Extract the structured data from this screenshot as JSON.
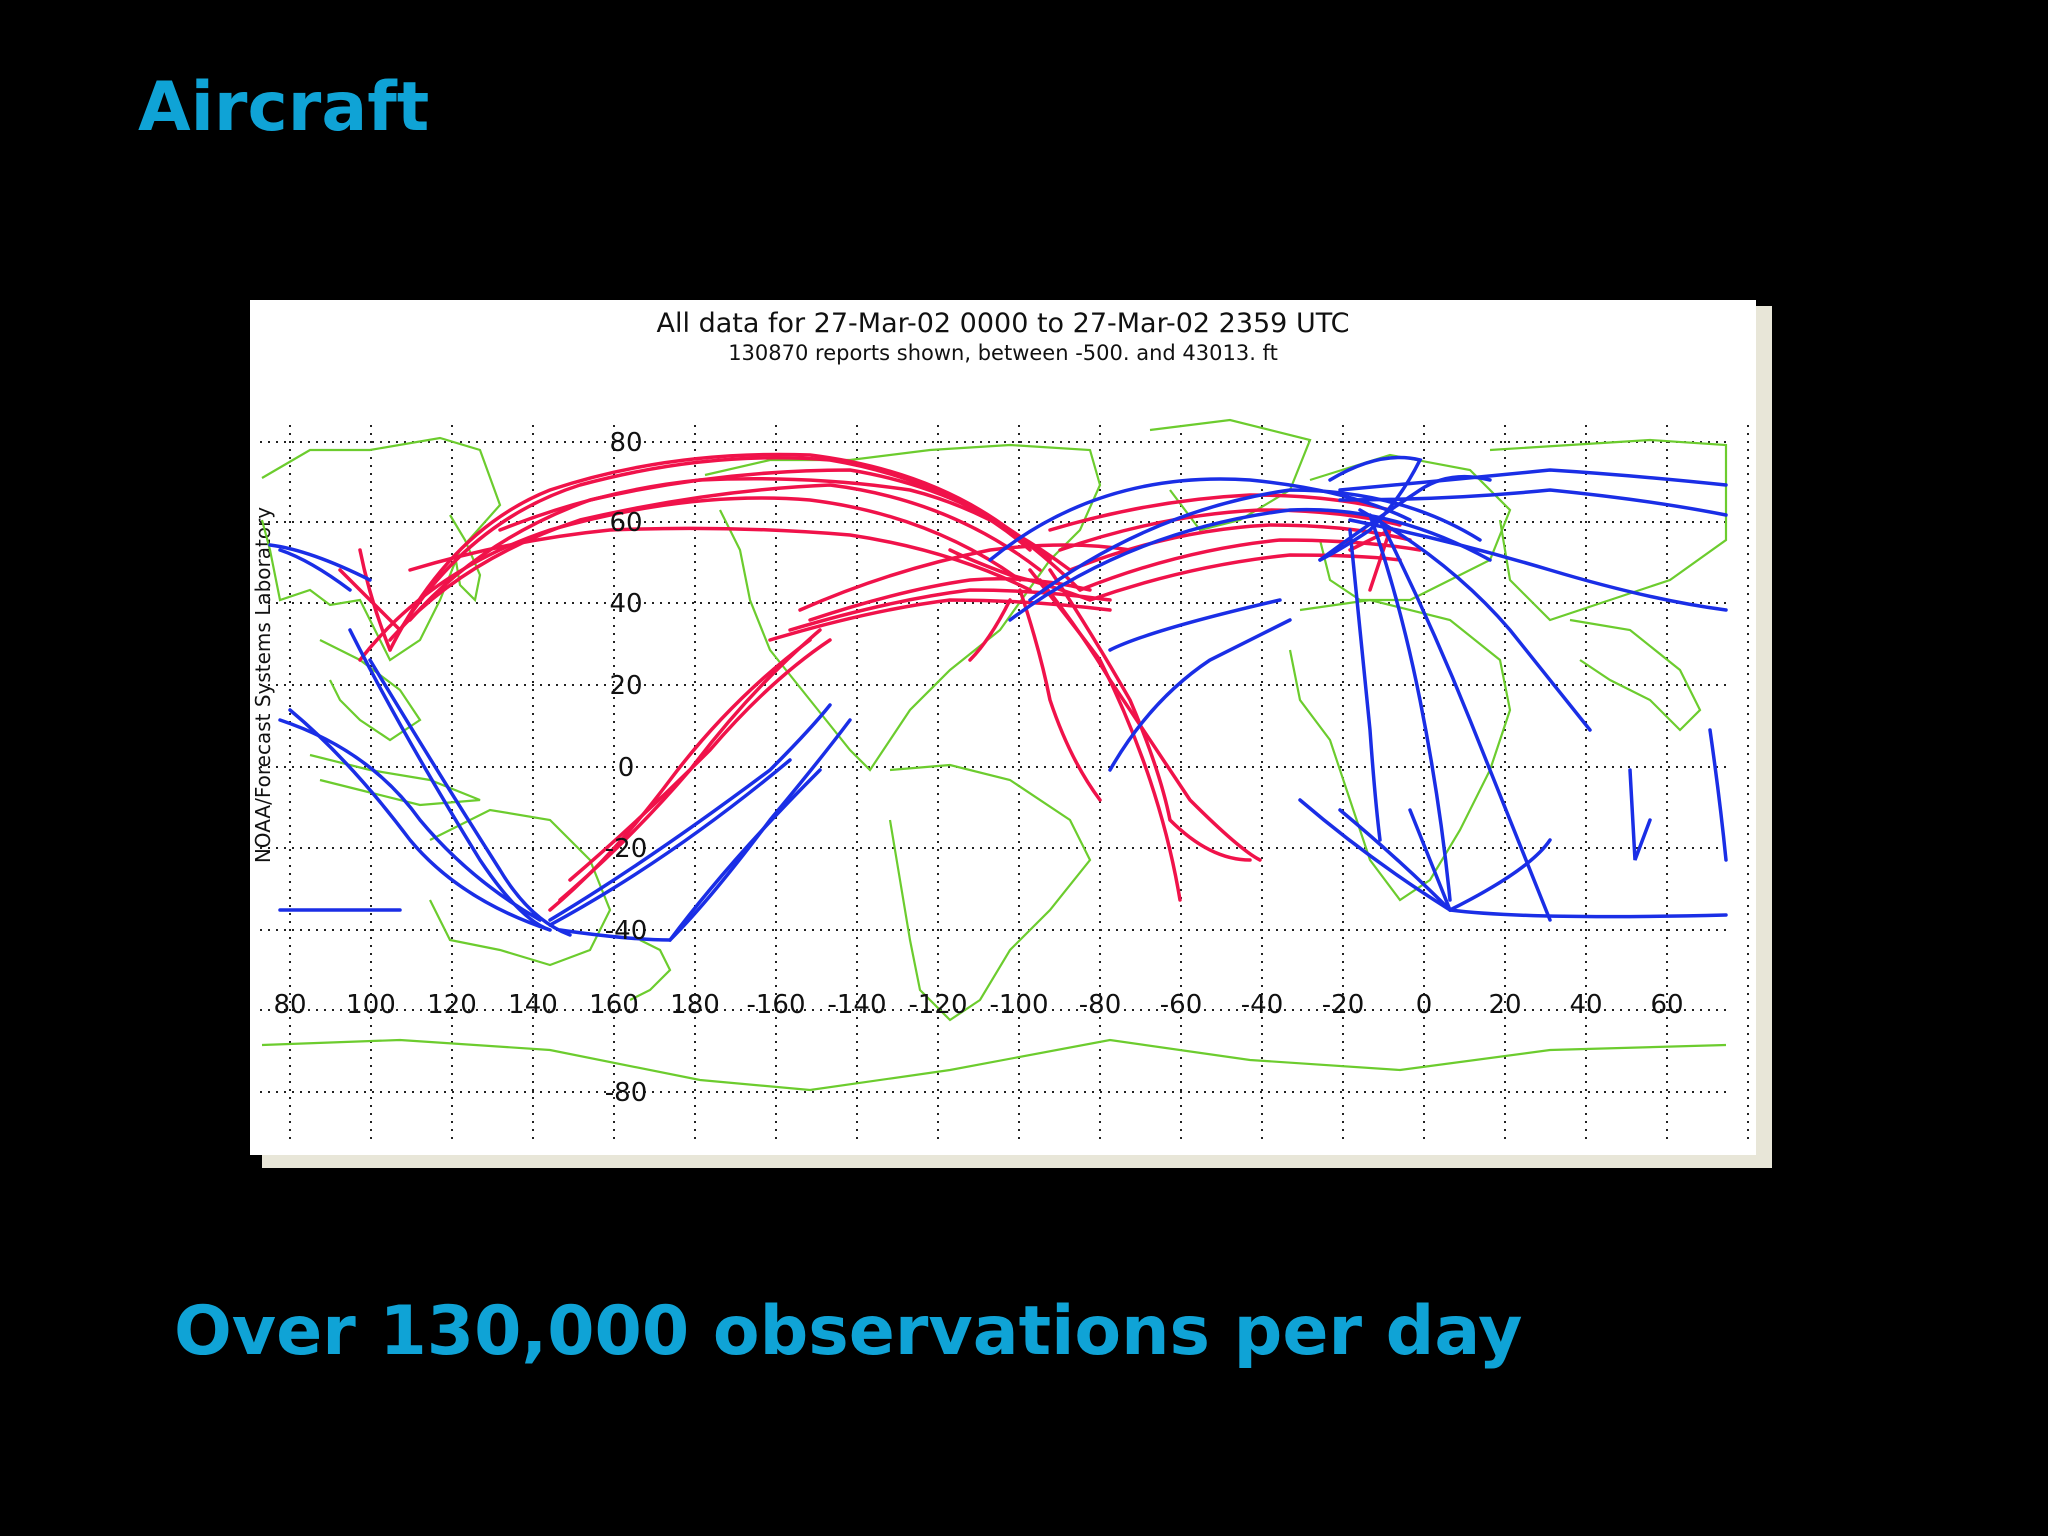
{
  "slide": {
    "title": "Aircraft",
    "caption": "Over 130,000 observations per day"
  },
  "map": {
    "header_line1": "All data for 27-Mar-02 0000 to 27-Mar-02 2359 UTC",
    "header_line2": "130870 reports shown, between -500. and 43013. ft",
    "side_label": "NOAA/Forecast Systems Laboratory",
    "projection": "cylindrical, Pacific-centered",
    "gridlines": true,
    "lon_ticks": [
      "80",
      "100",
      "120",
      "140",
      "160",
      "180",
      "-160",
      "-140",
      "-120",
      "-100",
      "-80",
      "-60",
      "-40",
      "-20",
      "0",
      "20",
      "40",
      "60"
    ],
    "lat_ticks": [
      "80",
      "60",
      "40",
      "20",
      "0",
      "-20",
      "-40",
      "-80"
    ],
    "colors": {
      "background": "#000000",
      "title_text": "#0fa3d6",
      "coastlines": "#6ccc2e",
      "low_altitude_reports": "#1a2ee6",
      "high_altitude_reports": "#f0124a",
      "gridlines": "#222222"
    }
  }
}
